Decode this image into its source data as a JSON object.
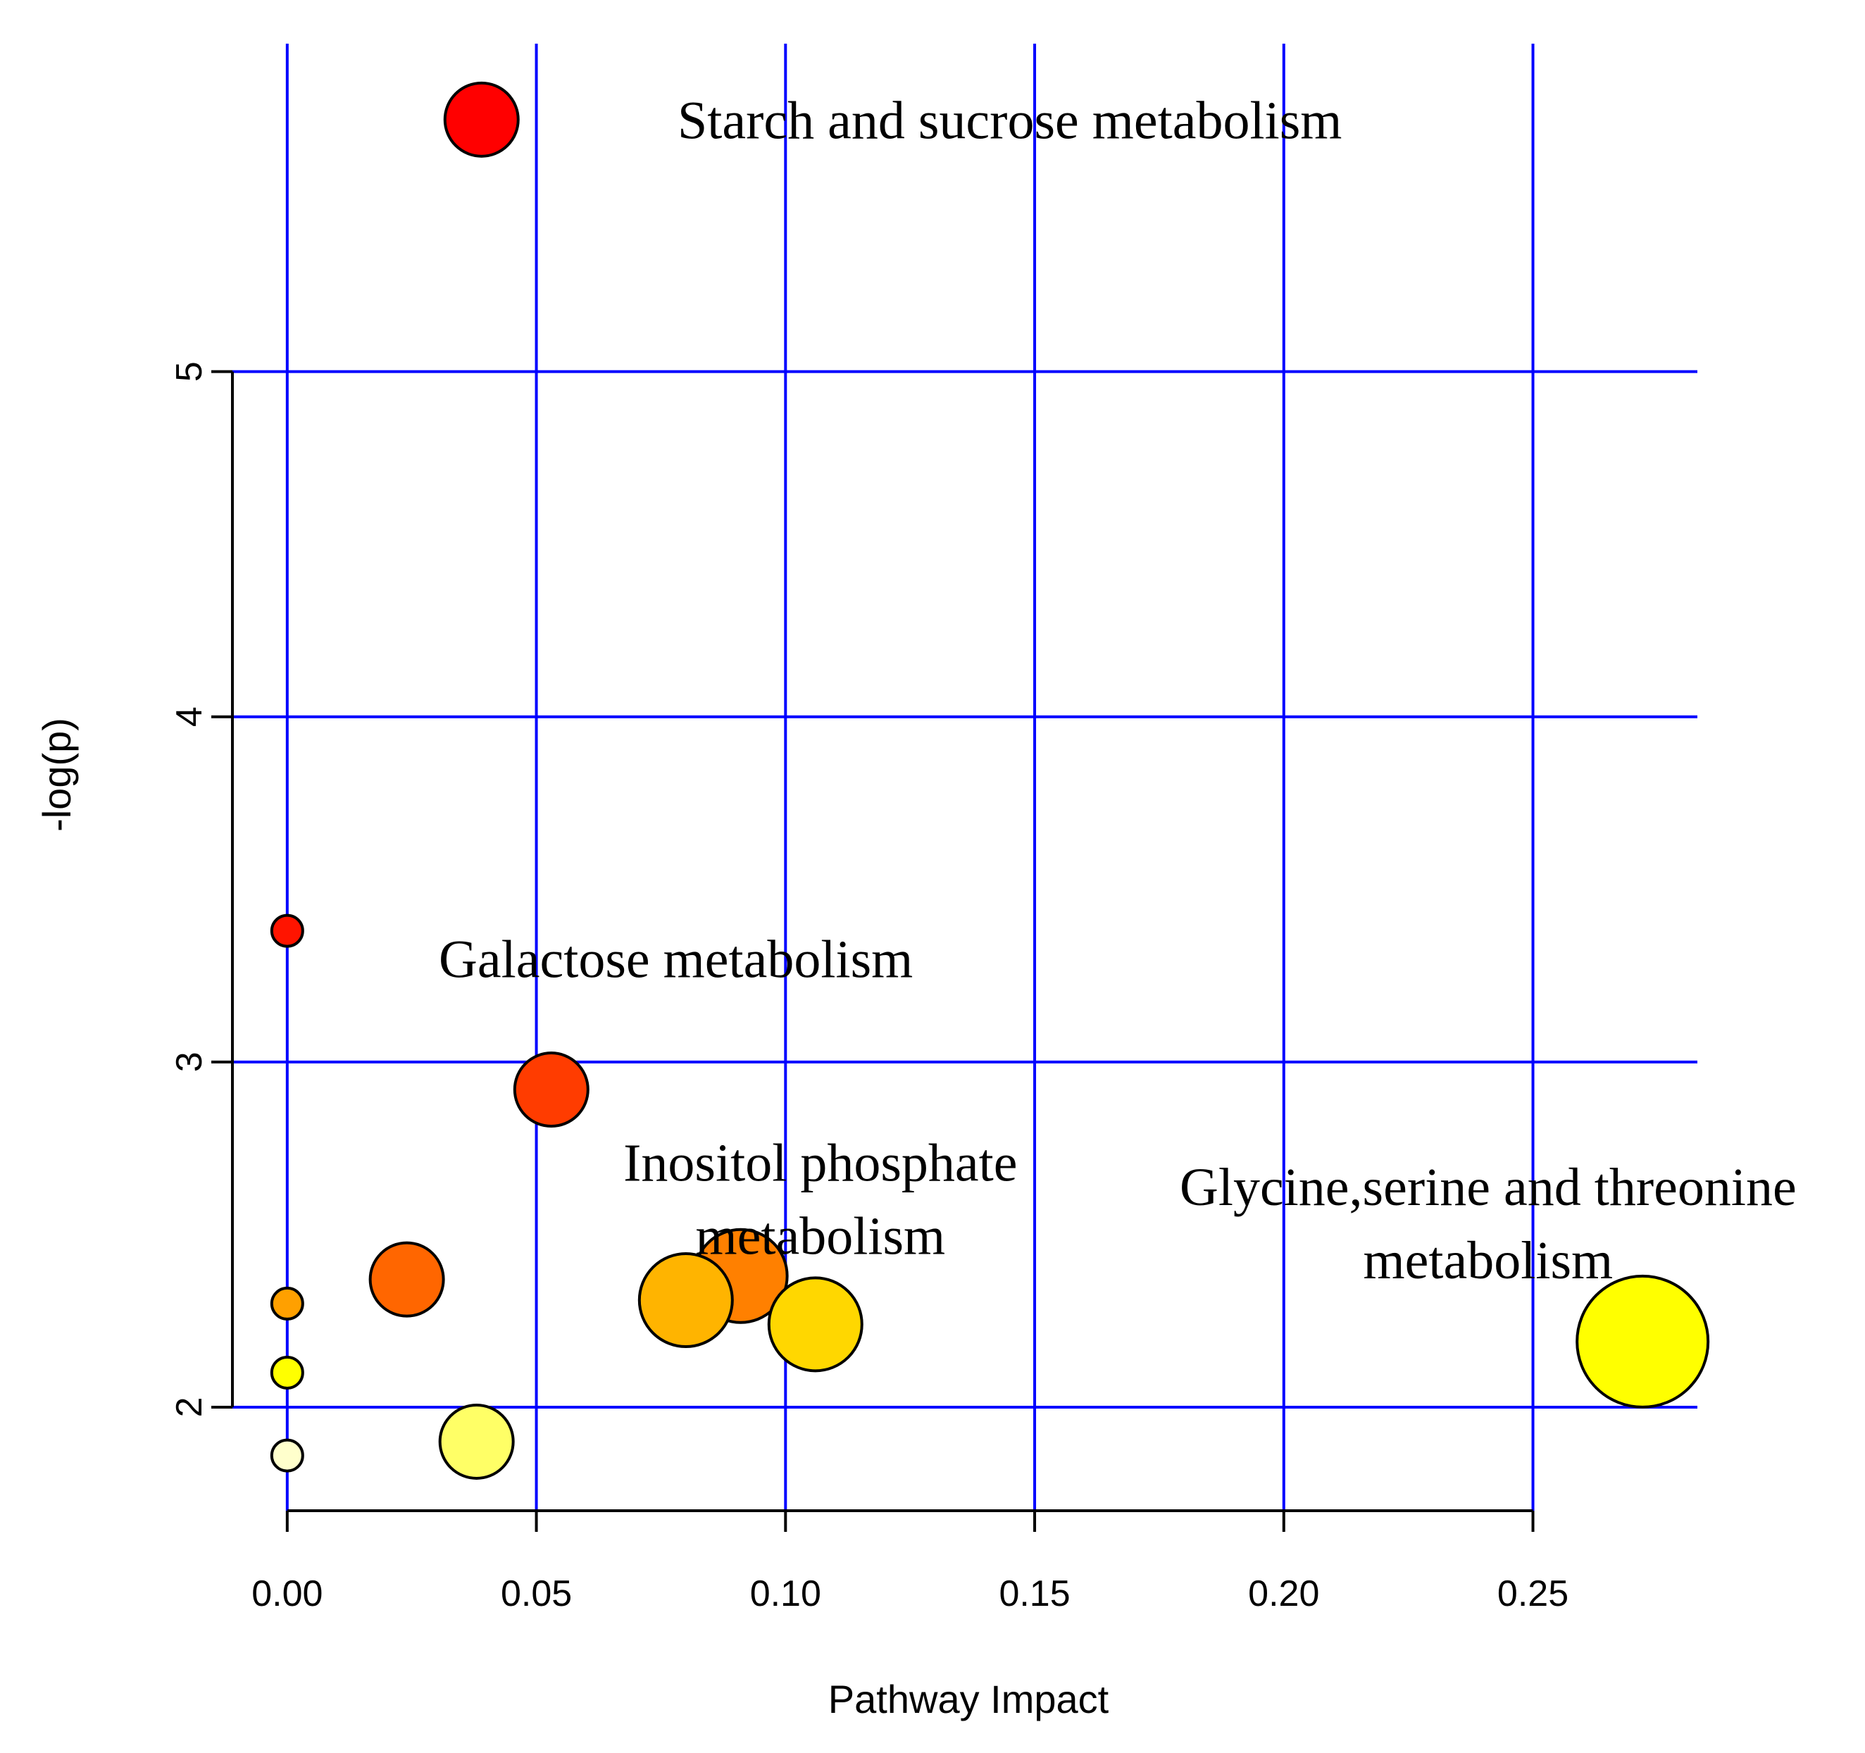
{
  "chart_data": {
    "type": "scatter",
    "title": "",
    "xlabel": "Pathway Impact",
    "ylabel": "-log(p)",
    "xlim": [
      -0.011,
      0.283
    ],
    "ylim": [
      1.7,
      5.95
    ],
    "x_ticks": [
      0.0,
      0.05,
      0.1,
      0.15,
      0.2,
      0.25
    ],
    "x_tick_labels": [
      "0.00",
      "0.05",
      "0.10",
      "0.15",
      "0.20",
      "0.25"
    ],
    "y_ticks": [
      2,
      3,
      4,
      5
    ],
    "y_tick_labels": [
      "2",
      "3",
      "4",
      "5"
    ],
    "grid": true,
    "grid_color": "#0000ff",
    "points": [
      {
        "x": 0.039,
        "y": 5.73,
        "size": "medium",
        "color": "#ff0000",
        "label": "Starch and sucrose metabolism"
      },
      {
        "x": 0.0,
        "y": 3.38,
        "size": "small",
        "color": "#ff1400"
      },
      {
        "x": 0.053,
        "y": 2.92,
        "size": "medium",
        "color": "#ff3c00",
        "label": "Galactose metabolism"
      },
      {
        "x": 0.024,
        "y": 2.37,
        "size": "medium",
        "color": "#ff6600"
      },
      {
        "x": 0.091,
        "y": 2.38,
        "size": "large",
        "color": "#ff8000",
        "label": "Inositol phosphate metabolism"
      },
      {
        "x": 0.08,
        "y": 2.31,
        "size": "large",
        "color": "#ffb400"
      },
      {
        "x": 0.0,
        "y": 2.3,
        "size": "small",
        "color": "#ffa000"
      },
      {
        "x": 0.106,
        "y": 2.24,
        "size": "large",
        "color": "#ffd700"
      },
      {
        "x": 0.272,
        "y": 2.19,
        "size": "xlarge",
        "color": "#ffff00",
        "label": "Glycine,serine and threonine metabolism"
      },
      {
        "x": 0.0,
        "y": 2.1,
        "size": "small",
        "color": "#ffff00"
      },
      {
        "x": 0.038,
        "y": 1.9,
        "size": "medium",
        "color": "#ffff66"
      },
      {
        "x": 0.0,
        "y": 1.86,
        "size": "small",
        "color": "#ffffcc"
      }
    ],
    "annotations": [
      {
        "lines": [
          "Starch and sucrose metabolism"
        ],
        "x": 0.145,
        "y": 5.73,
        "anchor": "middle"
      },
      {
        "lines": [
          "Galactose metabolism"
        ],
        "x": 0.078,
        "y": 3.3,
        "anchor": "middle"
      },
      {
        "lines": [
          "Inositol phosphate",
          "metabolism"
        ],
        "x": 0.107,
        "y": 2.71,
        "anchor": "middle"
      },
      {
        "lines": [
          "Glycine,serine and threonine",
          "metabolism"
        ],
        "x": 0.241,
        "y": 2.64,
        "anchor": "middle"
      }
    ]
  }
}
